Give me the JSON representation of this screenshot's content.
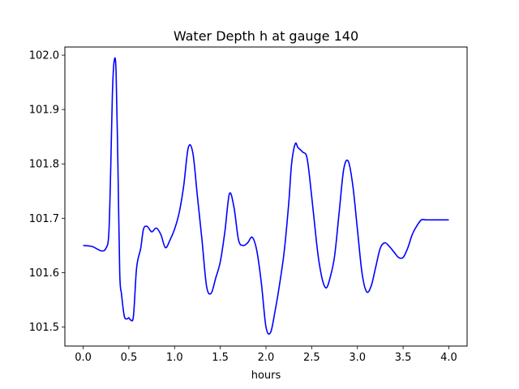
{
  "chart_data": {
    "type": "line",
    "title": "Water Depth h at gauge 140",
    "xlabel": "hours",
    "ylabel": "",
    "xlim": [
      -0.2,
      4.2
    ],
    "ylim": [
      101.465,
      102.015
    ],
    "x_ticks": [
      0.0,
      0.5,
      1.0,
      1.5,
      2.0,
      2.5,
      3.0,
      3.5,
      4.0
    ],
    "x_tick_labels": [
      "0.0",
      "0.5",
      "1.0",
      "1.5",
      "2.0",
      "2.5",
      "3.0",
      "3.5",
      "4.0"
    ],
    "y_ticks": [
      101.5,
      101.6,
      101.7,
      101.8,
      101.9,
      102.0
    ],
    "y_tick_labels": [
      "101.5",
      "101.6",
      "101.7",
      "101.8",
      "101.9",
      "102.0"
    ],
    "grid": false,
    "line_color": "#0000ff",
    "series": [
      {
        "x": [
          0.0,
          0.1,
          0.2,
          0.25,
          0.28,
          0.3,
          0.32,
          0.34,
          0.36,
          0.38,
          0.4,
          0.42,
          0.45,
          0.48,
          0.5,
          0.52,
          0.55,
          0.58,
          0.6,
          0.63,
          0.66,
          0.7,
          0.75,
          0.8,
          0.85,
          0.9,
          0.95,
          1.0,
          1.05,
          1.1,
          1.15,
          1.2,
          1.25,
          1.3,
          1.35,
          1.4,
          1.45,
          1.5,
          1.55,
          1.6,
          1.65,
          1.7,
          1.75,
          1.8,
          1.85,
          1.9,
          1.95,
          2.0,
          2.05,
          2.1,
          2.15,
          2.2,
          2.25,
          2.28,
          2.32,
          2.35,
          2.4,
          2.45,
          2.5,
          2.55,
          2.58,
          2.62,
          2.66,
          2.7,
          2.75,
          2.8,
          2.85,
          2.9,
          2.95,
          3.0,
          3.05,
          3.1,
          3.15,
          3.2,
          3.25,
          3.3,
          3.35,
          3.4,
          3.45,
          3.5,
          3.55,
          3.6,
          3.65,
          3.7,
          3.75,
          3.8,
          3.85,
          3.9,
          3.95,
          4.0
        ],
        "y": [
          101.65,
          101.648,
          101.64,
          101.645,
          101.67,
          101.78,
          101.93,
          101.99,
          101.97,
          101.8,
          101.6,
          101.56,
          101.52,
          101.515,
          101.517,
          101.513,
          101.52,
          101.6,
          101.625,
          101.645,
          101.68,
          101.685,
          101.675,
          101.682,
          101.67,
          101.646,
          101.66,
          101.68,
          101.71,
          101.76,
          101.83,
          101.82,
          101.74,
          101.66,
          101.575,
          101.562,
          101.59,
          101.62,
          101.675,
          101.745,
          101.72,
          101.66,
          101.65,
          101.655,
          101.665,
          101.64,
          101.58,
          101.5,
          101.49,
          101.53,
          101.58,
          101.64,
          101.73,
          101.8,
          101.837,
          101.83,
          101.822,
          101.81,
          101.74,
          101.66,
          101.62,
          101.585,
          101.572,
          101.59,
          101.63,
          101.71,
          101.79,
          101.805,
          101.76,
          101.68,
          101.6,
          101.565,
          101.575,
          101.61,
          101.645,
          101.655,
          101.648,
          101.638,
          101.628,
          101.628,
          101.645,
          101.67,
          101.686,
          101.697,
          101.697,
          101.697,
          101.697,
          101.697,
          101.697,
          101.697
        ]
      }
    ]
  }
}
